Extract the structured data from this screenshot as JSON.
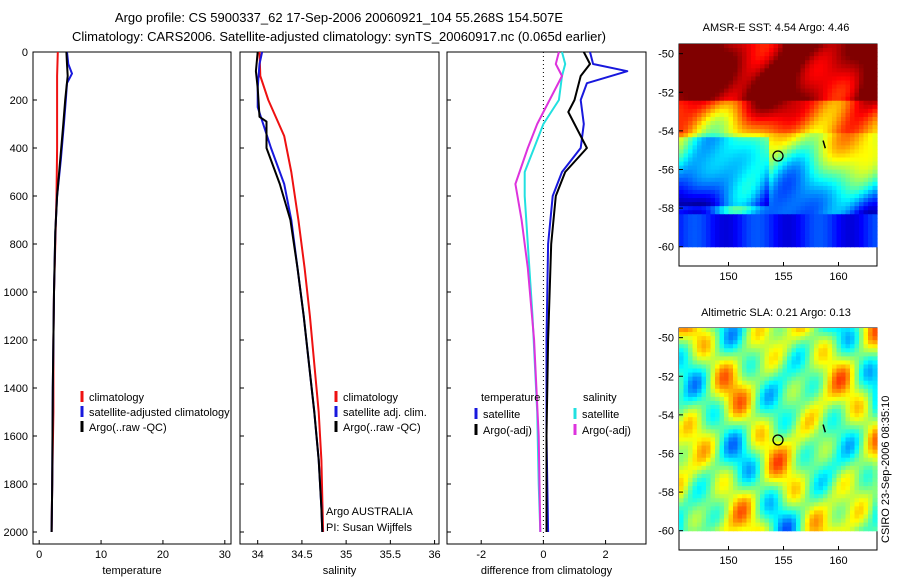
{
  "title": {
    "line1": "Argo profile: CS 5900337_62 17-Sep-2006 20060921_104 55.268S 154.507E",
    "line2": "Climatology: CARS2006. Satellite-adjusted climatology: synTS_20060917.nc (0.065d earlier)"
  },
  "credit": "CSIRO 23-Sep-2006 08:35:10",
  "colors": {
    "red": "#ee1111",
    "blue": "#1818dd",
    "black": "#000000",
    "cyan": "#22e0e0",
    "magenta": "#dd33dd"
  },
  "chart_data": [
    {
      "type": "line",
      "name": "temperature",
      "xlabel": "temperature",
      "xlim": [
        -1,
        31
      ],
      "ylim": [
        0,
        2050
      ],
      "y_reversed": true,
      "xticks": [
        0,
        10,
        20,
        30
      ],
      "yticks": [
        0,
        200,
        400,
        600,
        800,
        1000,
        1200,
        1400,
        1600,
        1800,
        2000
      ],
      "series": [
        {
          "name": "climatology",
          "color": "red",
          "x": [
            3.0,
            2.9,
            2.9,
            2.9,
            2.8,
            2.6,
            2.4,
            2.3,
            2.3,
            2.1,
            2.0
          ],
          "y": [
            0,
            100,
            200,
            400,
            600,
            800,
            1000,
            1200,
            1500,
            1800,
            2000
          ]
        },
        {
          "name": "satellite-adjusted climatology",
          "color": "blue",
          "x": [
            4.5,
            4.7,
            5.3,
            4.5,
            4.3,
            4.0,
            3.5,
            2.9,
            2.6,
            2.4,
            2.2,
            2.1,
            2.0
          ],
          "y": [
            0,
            50,
            90,
            130,
            200,
            300,
            450,
            600,
            750,
            1000,
            1400,
            1800,
            2000
          ]
        },
        {
          "name": "Argo(..raw -QC)",
          "color": "black",
          "x": [
            4.4,
            4.5,
            4.6,
            4.4,
            4.2,
            3.9,
            3.4,
            2.9,
            2.6,
            2.4,
            2.2,
            2.1,
            2.0
          ],
          "y": [
            0,
            50,
            100,
            150,
            200,
            300,
            450,
            600,
            750,
            1000,
            1400,
            1800,
            2000
          ]
        }
      ],
      "legend": [
        "climatology",
        "satellite-adjusted climatology",
        "Argo(..raw -QC)"
      ]
    },
    {
      "type": "line",
      "name": "salinity",
      "xlabel": "salinity",
      "xlim": [
        33.8,
        36.05
      ],
      "ylim": [
        0,
        2050
      ],
      "y_reversed": true,
      "xticks": [
        34,
        34.5,
        35,
        35.5,
        36
      ],
      "xtick_labels": [
        "34",
        "34.5",
        "35",
        "35.5",
        "36"
      ],
      "series": [
        {
          "name": "climatology",
          "color": "red",
          "x": [
            34.02,
            34.03,
            34.12,
            34.3,
            34.38,
            34.46,
            34.53,
            34.59,
            34.64,
            34.69,
            34.72,
            34.74
          ],
          "y": [
            0,
            100,
            200,
            350,
            500,
            700,
            900,
            1100,
            1300,
            1500,
            1700,
            2000
          ]
        },
        {
          "name": "satellite adj. clim.",
          "color": "blue",
          "x": [
            34.05,
            34.02,
            34.0,
            34.0,
            34.15,
            34.3,
            34.38,
            34.45,
            34.52,
            34.58,
            34.64,
            34.69,
            34.72,
            34.73
          ],
          "y": [
            0,
            50,
            150,
            230,
            400,
            550,
            700,
            900,
            1100,
            1300,
            1500,
            1700,
            1900,
            2000
          ]
        },
        {
          "name": "Argo(..raw -QC)",
          "color": "black",
          "x": [
            34.0,
            33.98,
            34.0,
            34.02,
            34.1,
            34.1,
            34.25,
            34.37,
            34.45,
            34.52,
            34.58,
            34.64,
            34.69,
            34.72,
            34.73
          ],
          "y": [
            0,
            80,
            150,
            270,
            290,
            400,
            550,
            700,
            900,
            1100,
            1300,
            1500,
            1700,
            1900,
            2000
          ]
        }
      ],
      "legend": [
        "climatology",
        "satellite adj. clim.",
        "Argo(..raw -QC)"
      ],
      "annotations": [
        "Argo AUSTRALIA",
        "PI: Susan Wijffels"
      ]
    },
    {
      "type": "line",
      "name": "difference",
      "xlabel": "difference from climatology",
      "xlim": [
        -3.1,
        3.3
      ],
      "ylim": [
        0,
        2050
      ],
      "y_reversed": true,
      "xticks": [
        -2,
        0,
        2
      ],
      "series": [
        {
          "name": "temperature satellite",
          "color": "blue",
          "x": [
            1.5,
            1.6,
            2.7,
            1.4,
            1.2,
            1.3,
            1.2,
            0.6,
            0.3,
            0.15,
            0.1,
            0.1,
            0.15
          ],
          "y": [
            0,
            50,
            80,
            130,
            200,
            300,
            400,
            500,
            600,
            800,
            1200,
            1600,
            2000
          ]
        },
        {
          "name": "temperature Argo(-adj)",
          "color": "black",
          "x": [
            1.3,
            1.5,
            1.2,
            1.0,
            0.8,
            1.0,
            1.4,
            0.7,
            0.4,
            0.25,
            0.15,
            0.1,
            0.1
          ],
          "y": [
            0,
            50,
            100,
            200,
            250,
            300,
            400,
            500,
            600,
            800,
            1200,
            1600,
            2000
          ]
        },
        {
          "name": "salinity satellite",
          "color": "cyan",
          "x": [
            0.6,
            0.7,
            0.6,
            0.5,
            0.0,
            -0.3,
            -0.6,
            -0.6,
            -0.5,
            -0.35,
            -0.2,
            -0.15,
            -0.1
          ],
          "y": [
            0,
            50,
            100,
            200,
            300,
            400,
            500,
            600,
            800,
            1100,
            1500,
            1800,
            2000
          ]
        },
        {
          "name": "salinity Argo(-adj)",
          "color": "magenta",
          "x": [
            0.5,
            0.4,
            0.6,
            0.4,
            -0.2,
            -0.5,
            -0.9,
            -0.7,
            -0.5,
            -0.3,
            -0.15,
            -0.1
          ],
          "y": [
            0,
            50,
            100,
            150,
            300,
            400,
            550,
            700,
            900,
            1200,
            1600,
            2000
          ]
        }
      ],
      "legend_headers": [
        "temperature",
        "salinity"
      ],
      "legend": [
        "satellite",
        "Argo(-adj)",
        "satellite",
        "Argo(-adj)"
      ]
    },
    {
      "type": "heatmap",
      "name": "AMSR-E SST",
      "title": "AMSR-E SST: 4.54 Argo: 4.46",
      "xticks": [
        150,
        155,
        160
      ],
      "yticks": [
        -50,
        -52,
        -54,
        -56,
        -58,
        -60
      ],
      "xlim": [
        145.5,
        163.5
      ],
      "ylim": [
        -61,
        -49.5
      ],
      "marker": {
        "lon": 154.5,
        "lat": -55.3
      }
    },
    {
      "type": "heatmap",
      "name": "Altimetric SLA",
      "title": "Altimetric SLA: 0.21 Argo: 0.13",
      "xticks": [
        150,
        155,
        160
      ],
      "yticks": [
        -50,
        -52,
        -54,
        -56,
        -58,
        -60
      ],
      "xlim": [
        145.5,
        163.5
      ],
      "ylim": [
        -61,
        -49.5
      ],
      "marker": {
        "lon": 154.5,
        "lat": -55.3
      }
    }
  ]
}
